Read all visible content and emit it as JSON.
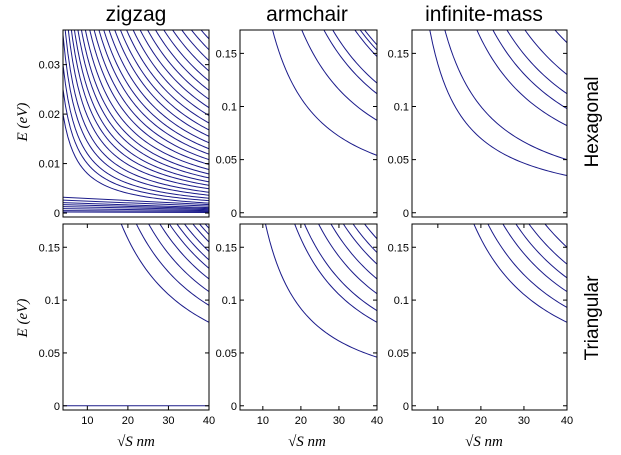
{
  "column_titles": [
    "zigzag",
    "armchair",
    "infinite-mass"
  ],
  "row_labels": [
    "Hexagonal",
    "Triangular"
  ],
  "ylabel": "E (eV)",
  "xlabel": "√S nm",
  "chart_data": [
    {
      "type": "line",
      "title": "zigzag",
      "row": "Hexagonal",
      "xlim": [
        4,
        40
      ],
      "ylim": [
        -0.0008,
        0.037
      ],
      "yticks": [
        0,
        0.01,
        0.02,
        0.03
      ],
      "ytick_labels": [
        "0",
        "0.01",
        "0.02",
        "0.03"
      ],
      "xticks": [],
      "xtick_labels": [],
      "description": "dense family of decaying levels (approx. E ∝ 1/√S) plus near-zero flat edge states",
      "series": [
        {
          "x": [
            4,
            40
          ],
          "y": [
            0.0002,
            0.0001
          ]
        },
        {
          "x": [
            4,
            40
          ],
          "y": [
            0.0005,
            0.0003
          ]
        },
        {
          "x": [
            4,
            40
          ],
          "y": [
            0.0009,
            0.0005
          ]
        },
        {
          "x": [
            4,
            40
          ],
          "y": [
            0.0013,
            0.0007
          ]
        },
        {
          "x": [
            4,
            40
          ],
          "y": [
            0.0017,
            0.0009
          ]
        },
        {
          "x": [
            4,
            40
          ],
          "y": [
            0.0021,
            0.0011
          ]
        },
        {
          "x": [
            4,
            40
          ],
          "y": [
            0.0026,
            0.0014
          ]
        },
        {
          "x": [
            4,
            40
          ],
          "y": [
            0.0032,
            0.0017
          ]
        }
      ],
      "decay_curves_value_at_x40": [
        0.002,
        0.0025,
        0.003,
        0.0036,
        0.0042,
        0.0049,
        0.0056,
        0.0063,
        0.0071,
        0.0079,
        0.0088,
        0.0098,
        0.0108,
        0.0119,
        0.013,
        0.0142,
        0.0155,
        0.0168,
        0.0182,
        0.0197,
        0.0213,
        0.023,
        0.0248,
        0.0267,
        0.0287,
        0.0308,
        0.033,
        0.0352,
        0.0375,
        0.04,
        0.0428,
        0.0458,
        0.049
      ]
    },
    {
      "type": "line",
      "title": "armchair",
      "row": "Hexagonal",
      "xlim": [
        4,
        40
      ],
      "ylim": [
        -0.004,
        0.172
      ],
      "yticks": [
        0,
        0.05,
        0.1,
        0.15
      ],
      "ytick_labels": [
        "0",
        "0.05",
        "0.1",
        "0.15"
      ],
      "xticks": [],
      "xtick_labels": [],
      "decay_curves_value_at_x40": [
        0.054,
        0.087,
        0.112,
        0.122,
        0.147,
        0.153,
        0.158
      ]
    },
    {
      "type": "line",
      "title": "infinite-mass",
      "row": "Hexagonal",
      "xlim": [
        4,
        40
      ],
      "ylim": [
        -0.004,
        0.172
      ],
      "yticks": [
        0,
        0.05,
        0.1,
        0.15
      ],
      "ytick_labels": [
        "0",
        "0.05",
        "0.1",
        "0.15"
      ],
      "xticks": [],
      "xtick_labels": [],
      "decay_curves_value_at_x40": [
        0.035,
        0.05,
        0.082,
        0.098,
        0.112,
        0.13,
        0.16
      ]
    },
    {
      "type": "line",
      "title": "zigzag",
      "row": "Triangular",
      "xlim": [
        4,
        40
      ],
      "ylim": [
        -0.004,
        0.172
      ],
      "yticks": [
        0,
        0.05,
        0.1,
        0.15
      ],
      "ytick_labels": [
        "0",
        "0.05",
        "0.1",
        "0.15"
      ],
      "xticks": [
        10,
        20,
        30,
        40
      ],
      "xtick_labels": [
        "10",
        "20",
        "30",
        "40"
      ],
      "flat_level": 0.0,
      "decay_curves_value_at_x40": [
        0.079,
        0.095,
        0.108,
        0.12,
        0.13,
        0.138,
        0.146,
        0.155,
        0.162,
        0.168
      ]
    },
    {
      "type": "line",
      "title": "armchair",
      "row": "Triangular",
      "xlim": [
        4,
        40
      ],
      "ylim": [
        -0.004,
        0.172
      ],
      "yticks": [
        0,
        0.05,
        0.1,
        0.15
      ],
      "ytick_labels": [
        "0",
        "0.05",
        "0.1",
        "0.15"
      ],
      "xticks": [
        10,
        20,
        30,
        40
      ],
      "xtick_labels": [
        "10",
        "20",
        "30",
        "40"
      ],
      "decay_curves_value_at_x40": [
        0.046,
        0.079,
        0.09,
        0.106,
        0.12,
        0.134,
        0.145,
        0.158
      ]
    },
    {
      "type": "line",
      "title": "infinite-mass",
      "row": "Triangular",
      "xlim": [
        4,
        40
      ],
      "ylim": [
        -0.004,
        0.172
      ],
      "yticks": [
        0,
        0.05,
        0.1,
        0.15
      ],
      "ytick_labels": [
        "0",
        "0.05",
        "0.1",
        "0.15"
      ],
      "xticks": [
        10,
        20,
        30,
        40
      ],
      "xtick_labels": [
        "10",
        "20",
        "30",
        "40"
      ],
      "decay_curves_value_at_x40": [
        0.079,
        0.093,
        0.108,
        0.121,
        0.134,
        0.15
      ]
    }
  ],
  "colors": {
    "curve": "#1b1b8a",
    "axes": "#000000",
    "background": "#ffffff"
  }
}
